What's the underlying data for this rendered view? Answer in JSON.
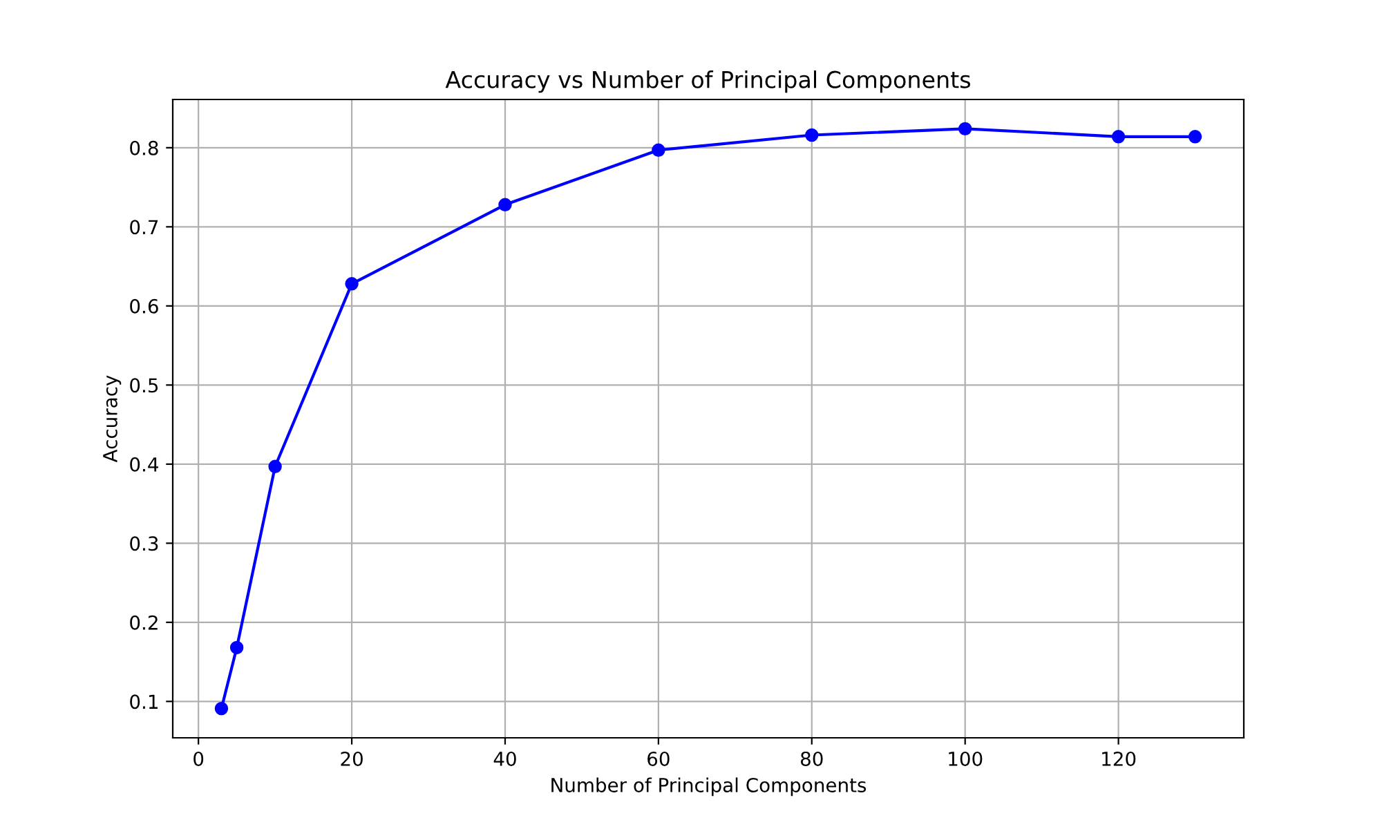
{
  "chart_data": {
    "type": "line",
    "title": "Accuracy vs Number of Principal Components",
    "xlabel": "Number of Principal Components",
    "ylabel": "Accuracy",
    "x": [
      3,
      5,
      10,
      20,
      40,
      60,
      80,
      100,
      120,
      130
    ],
    "series": [
      {
        "color": "#0000ff",
        "values": [
          0.091,
          0.168,
          0.397,
          0.628,
          0.728,
          0.797,
          0.816,
          0.824,
          0.814,
          0.814
        ]
      }
    ],
    "xlim": [
      -3.35,
      136.35
    ],
    "ylim": [
      0.054,
      0.861
    ],
    "xticks": [
      0,
      20,
      40,
      60,
      80,
      100,
      120
    ],
    "yticks": [
      0.1,
      0.2,
      0.3,
      0.4,
      0.5,
      0.6,
      0.7,
      0.8
    ],
    "grid": true,
    "marker": "circle",
    "line_style": "solid"
  }
}
